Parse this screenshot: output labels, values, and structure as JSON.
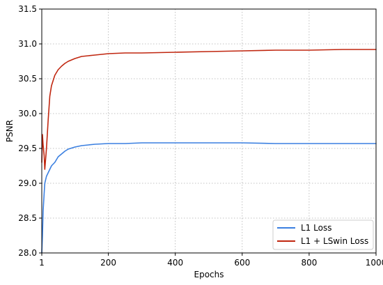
{
  "chart_data": {
    "type": "line",
    "title": "",
    "xlabel": "Epochs",
    "ylabel": "PSNR",
    "xlim": [
      1,
      1000
    ],
    "ylim": [
      28.0,
      31.5
    ],
    "xticks": [
      1,
      200,
      400,
      600,
      800,
      1000
    ],
    "xtick_labels": [
      "1",
      "200",
      "400",
      "600",
      "800",
      "1000"
    ],
    "yticks": [
      28.0,
      28.5,
      29.0,
      29.5,
      30.0,
      30.5,
      31.0,
      31.5
    ],
    "ytick_labels": [
      "28.0",
      "28.5",
      "29.0",
      "29.5",
      "30.0",
      "30.5",
      "31.0",
      "31.5"
    ],
    "grid": true,
    "legend_position": "lower-right",
    "series": [
      {
        "name": "L1 Loss",
        "color": "#3a7fe0",
        "x": [
          1,
          3,
          5,
          8,
          10,
          15,
          20,
          30,
          40,
          50,
          60,
          70,
          80,
          100,
          120,
          140,
          160,
          200,
          250,
          300,
          400,
          500,
          600,
          700,
          800,
          900,
          1000
        ],
        "y": [
          28.0,
          28.25,
          28.6,
          28.85,
          29.0,
          29.1,
          29.15,
          29.25,
          29.3,
          29.38,
          29.42,
          29.46,
          29.49,
          29.52,
          29.54,
          29.55,
          29.56,
          29.57,
          29.57,
          29.58,
          29.58,
          29.58,
          29.58,
          29.57,
          29.57,
          29.57,
          29.57
        ]
      },
      {
        "name": "L1 + LSwin Loss",
        "color": "#c0260f",
        "x": [
          1,
          3,
          5,
          8,
          10,
          15,
          20,
          25,
          30,
          40,
          50,
          60,
          70,
          80,
          100,
          120,
          140,
          160,
          200,
          250,
          300,
          400,
          500,
          600,
          700,
          800,
          900,
          1000
        ],
        "y": [
          29.3,
          29.7,
          29.55,
          29.4,
          29.2,
          29.5,
          29.9,
          30.25,
          30.4,
          30.55,
          30.63,
          30.68,
          30.72,
          30.75,
          30.79,
          30.82,
          30.83,
          30.84,
          30.86,
          30.87,
          30.87,
          30.88,
          30.89,
          30.9,
          30.91,
          30.91,
          30.92,
          30.92
        ]
      }
    ]
  }
}
